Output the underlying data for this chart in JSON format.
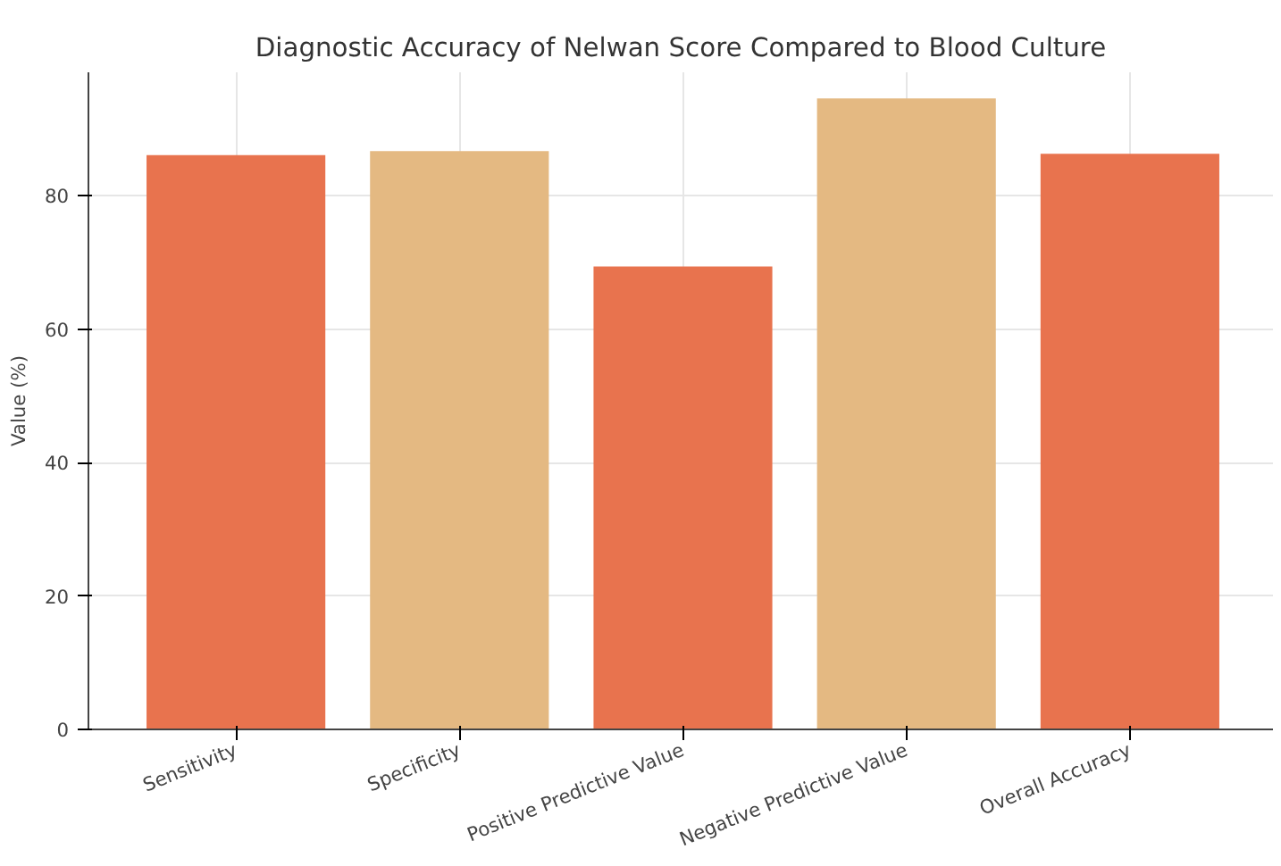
{
  "chart_data": {
    "type": "bar",
    "title": "Diagnostic Accuracy of Nelwan Score Compared to Blood Culture",
    "ylabel": "Value (%)",
    "categories": [
      "Sensitivity",
      "Specificity",
      "Positive Predictive Value",
      "Negative Predictive Value",
      "Overall Accuracy"
    ],
    "values": [
      86.1,
      86.7,
      69.4,
      94.6,
      86.3
    ],
    "colors": [
      "#e8734e",
      "#e4b982",
      "#e8734e",
      "#e4b982",
      "#e8734e"
    ],
    "ylim": [
      0,
      98.5
    ],
    "yticks": [
      0,
      20,
      40,
      60,
      80
    ],
    "grid": true
  }
}
